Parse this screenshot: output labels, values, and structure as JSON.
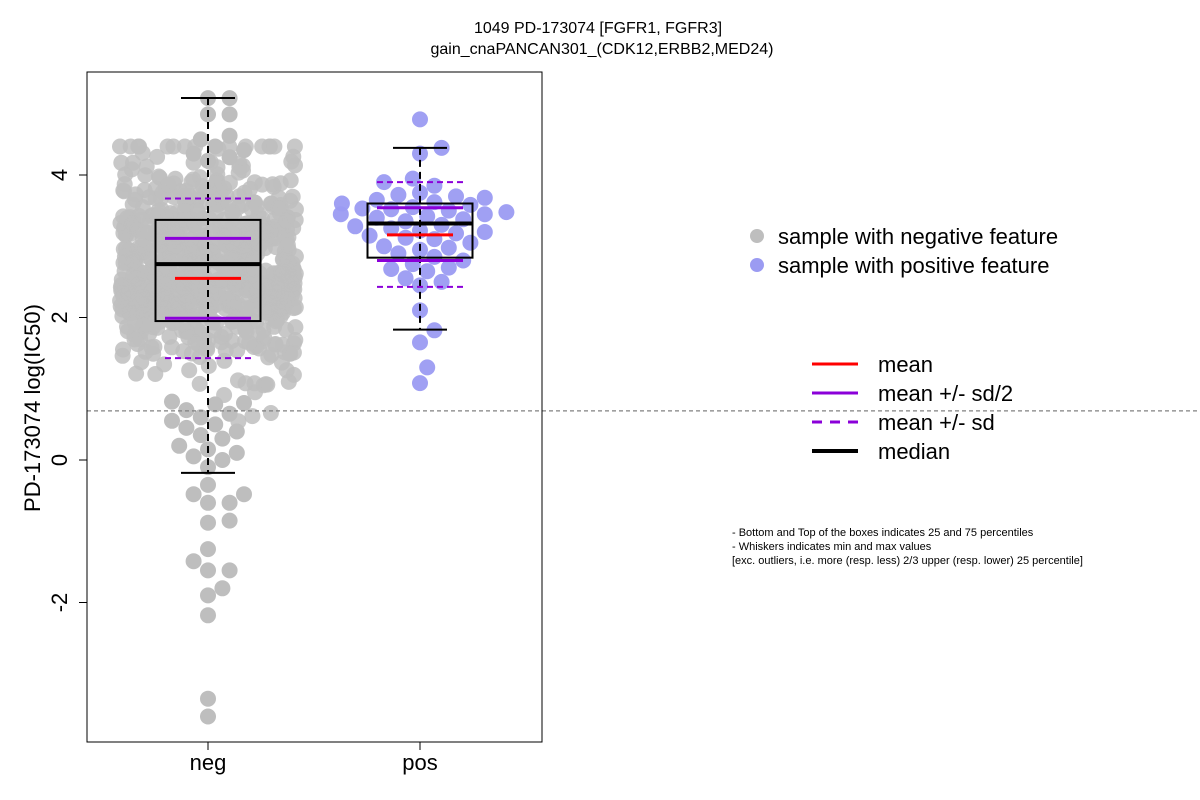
{
  "chart_data": {
    "type": "box-beeswarm",
    "title": "1049 PD-173074 [FGFR1, FGFR3]",
    "subtitle": "gain_cnaPANCAN301_(CDK12,ERBB2,MED24)",
    "ylabel": "PD-173074 log(IC50)",
    "xlabel": "",
    "categories": [
      "neg",
      "pos"
    ],
    "ylim": [
      -4,
      5.4
    ],
    "yticks": [
      -2,
      0,
      2,
      4
    ],
    "reference_line": 0.69,
    "colors": {
      "neg": "#BEBEBE",
      "pos": "#9B9BF2",
      "mean": "#FF0000",
      "sd": "#8B00D9",
      "median": "#000000",
      "ref": "#808080"
    },
    "groups": [
      {
        "name": "neg",
        "box": {
          "q1": 1.95,
          "median": 2.75,
          "q3": 3.37
        },
        "whiskers": {
          "low": -0.18,
          "high": 5.08
        },
        "mean": 2.55,
        "sd_half": [
          1.99,
          3.11
        ],
        "sd": [
          1.43,
          3.67
        ],
        "points_dense": {
          "n": 780,
          "seed": 11,
          "mean": 2.8,
          "sd": 0.75,
          "min": 0.5,
          "max": 4.4
        },
        "points_sparse": [
          5.08,
          5.08,
          4.85,
          4.85,
          4.55,
          4.5,
          4.4,
          4.35,
          4.3,
          4.25,
          4.2,
          0.82,
          0.8,
          0.78,
          0.7,
          0.65,
          0.6,
          0.55,
          0.5,
          0.45,
          0.4,
          0.35,
          0.3,
          0.2,
          0.15,
          0.1,
          0.05,
          0.0,
          -0.1,
          -0.35,
          -0.48,
          -0.48,
          -0.6,
          -0.6,
          -0.85,
          -0.88,
          -1.25,
          -1.42,
          -1.55,
          -1.55,
          -1.8,
          -1.9,
          -2.18,
          -3.35,
          -3.6
        ]
      },
      {
        "name": "pos",
        "box": {
          "q1": 2.84,
          "median": 3.32,
          "q3": 3.6
        },
        "whiskers": {
          "low": 1.83,
          "high": 4.38
        },
        "mean": 3.16,
        "sd_half": [
          2.8,
          3.54
        ],
        "sd": [
          2.43,
          3.9
        ],
        "points": [
          4.78,
          4.38,
          4.3,
          3.95,
          3.9,
          3.85,
          3.75,
          3.72,
          3.7,
          3.68,
          3.65,
          3.62,
          3.6,
          3.58,
          3.55,
          3.53,
          3.52,
          3.5,
          3.48,
          3.45,
          3.45,
          3.42,
          3.4,
          3.38,
          3.35,
          3.3,
          3.28,
          3.25,
          3.22,
          3.2,
          3.18,
          3.15,
          3.12,
          3.1,
          3.05,
          3.0,
          2.98,
          2.95,
          2.9,
          2.85,
          2.8,
          2.75,
          2.7,
          2.68,
          2.65,
          2.55,
          2.5,
          2.45,
          2.1,
          1.82,
          1.65,
          1.3,
          1.08
        ]
      }
    ],
    "legend_points": [
      {
        "label": "sample with negative feature",
        "color": "#BEBEBE"
      },
      {
        "label": "sample with positive feature",
        "color": "#9B9BF2"
      }
    ],
    "legend_lines": [
      {
        "label": "mean",
        "color": "#FF0000",
        "style": "solid"
      },
      {
        "label": "mean +/- sd/2",
        "color": "#8B00D9",
        "style": "solid"
      },
      {
        "label": "mean +/- sd",
        "color": "#8B00D9",
        "style": "dashed"
      },
      {
        "label": "median",
        "color": "#000000",
        "style": "bold"
      }
    ],
    "notes": [
      "- Bottom and Top of the boxes indicates 25 and 75 percentiles",
      "- Whiskers indicates min and max values",
      "[exc. outliers, i.e. more (resp. less) 2/3 upper (resp. lower) 25 percentile]"
    ]
  }
}
